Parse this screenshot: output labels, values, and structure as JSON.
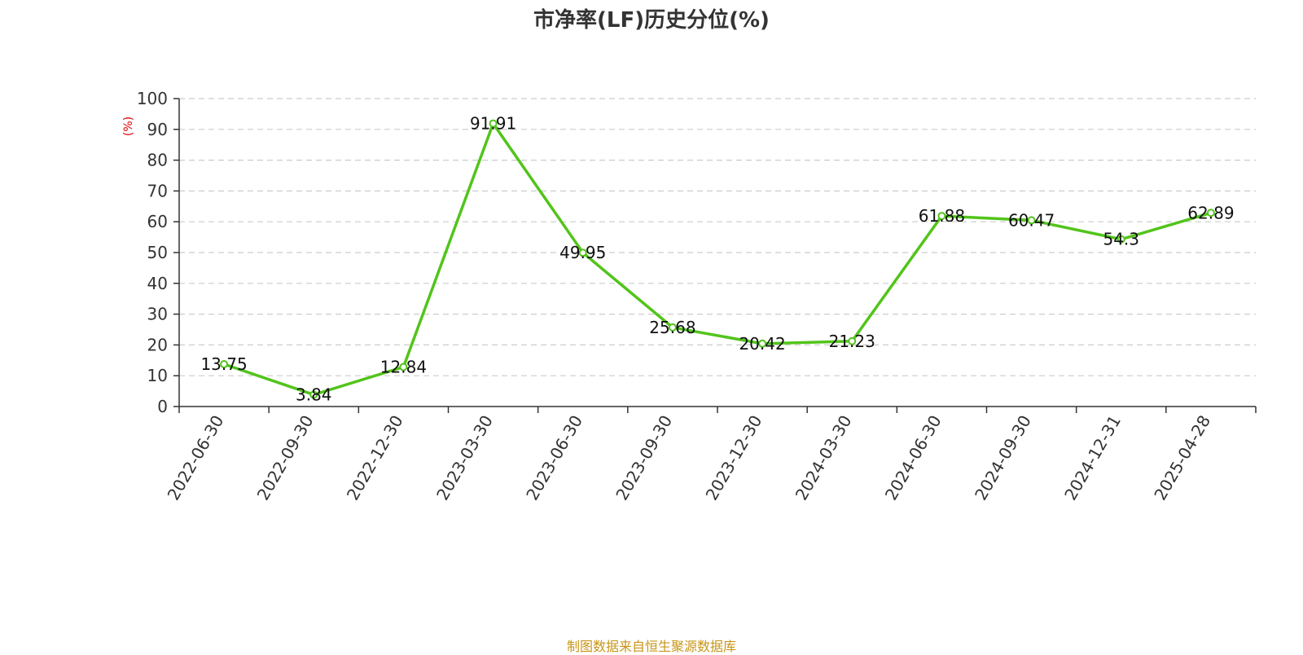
{
  "chart_data": {
    "type": "line",
    "title": "市净率(LF)历史分位(%)",
    "xlabel": "",
    "ylabel": "(%)",
    "categories": [
      "2022-06-30",
      "2022-09-30",
      "2022-12-30",
      "2023-03-30",
      "2023-06-30",
      "2023-09-30",
      "2023-12-30",
      "2024-03-30",
      "2024-06-30",
      "2024-09-30",
      "2024-12-31",
      "2025-04-28"
    ],
    "series": [
      {
        "values": [
          13.75,
          3.84,
          12.84,
          91.91,
          49.95,
          25.68,
          20.42,
          21.23,
          61.88,
          60.47,
          54.3,
          62.89
        ],
        "labels": [
          "13.75",
          "3.84",
          "12.84",
          "91.91",
          "49.95",
          "25.68",
          "20.42",
          "21.23",
          "61.88",
          "60.47",
          "54.3",
          "62.89"
        ]
      }
    ],
    "ylim": [
      0,
      100
    ],
    "yticks": [
      0,
      10,
      20,
      30,
      40,
      50,
      60,
      70,
      80,
      90,
      100
    ],
    "grid": true,
    "legend": "none"
  },
  "source": "制图数据来自恒生聚源数据库",
  "colors": {
    "line": "#52c41a",
    "marker_fill": "#ffffff",
    "grid": "#cccccc",
    "axis": "#333333",
    "ylabel": "#e00000",
    "source": "#c8951a"
  }
}
